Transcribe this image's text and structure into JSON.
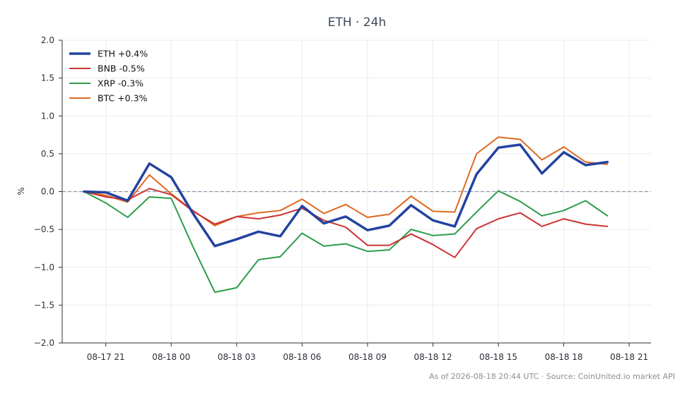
{
  "chart_data": {
    "type": "line",
    "title": "ETH · 24h",
    "xlabel": "",
    "ylabel": "%",
    "ylim": [
      -2.0,
      2.0
    ],
    "yticks": [
      2.0,
      1.5,
      1.0,
      0.5,
      0.0,
      -0.5,
      -1.0,
      -1.5,
      -2.0
    ],
    "ytick_labels": [
      "2.0",
      "1.5",
      "1.0",
      "0.5",
      "0.0",
      "−0.5",
      "−1.0",
      "−1.5",
      "−2.0"
    ],
    "xlim": [
      "2026-08-17 19:00",
      "2026-08-18 22:00"
    ],
    "xticks": [
      "2026-08-17 21:00",
      "2026-08-18 00:00",
      "2026-08-18 03:00",
      "2026-08-18 06:00",
      "2026-08-18 09:00",
      "2026-08-18 12:00",
      "2026-08-18 15:00",
      "2026-08-18 18:00",
      "2026-08-18 21:00"
    ],
    "xtick_labels": [
      "08-17 21",
      "08-18 00",
      "08-18 03",
      "08-18 06",
      "08-18 09",
      "08-18 12",
      "08-18 15",
      "08-18 18",
      "08-18 21"
    ],
    "x": [
      "2026-08-17 20:00",
      "2026-08-17 21:00",
      "2026-08-17 22:00",
      "2026-08-17 23:00",
      "2026-08-18 00:00",
      "2026-08-18 01:00",
      "2026-08-18 02:00",
      "2026-08-18 03:00",
      "2026-08-18 04:00",
      "2026-08-18 05:00",
      "2026-08-18 06:00",
      "2026-08-18 07:00",
      "2026-08-18 08:00",
      "2026-08-18 09:00",
      "2026-08-18 10:00",
      "2026-08-18 11:00",
      "2026-08-18 12:00",
      "2026-08-18 13:00",
      "2026-08-18 14:00",
      "2026-08-18 15:00",
      "2026-08-18 16:00",
      "2026-08-18 17:00",
      "2026-08-18 18:00",
      "2026-08-18 19:00",
      "2026-08-18 20:00"
    ],
    "series": [
      {
        "name": "ETH +0.4%",
        "color": "#2343a0",
        "width": 3.5,
        "values": [
          0.0,
          -0.01,
          -0.12,
          0.37,
          0.19,
          -0.29,
          -0.72,
          -0.63,
          -0.53,
          -0.59,
          -0.19,
          -0.42,
          -0.33,
          -0.51,
          -0.45,
          -0.18,
          -0.38,
          -0.46,
          0.23,
          0.58,
          0.62,
          0.24,
          0.52,
          0.35,
          0.39
        ]
      },
      {
        "name": "BNB -0.5%",
        "color": "#cc3333",
        "width": 2,
        "values": [
          0.0,
          -0.07,
          -0.11,
          0.04,
          -0.04,
          -0.26,
          -0.43,
          -0.33,
          -0.36,
          -0.31,
          -0.22,
          -0.38,
          -0.47,
          -0.71,
          -0.71,
          -0.56,
          -0.7,
          -0.87,
          -0.49,
          -0.36,
          -0.28,
          -0.46,
          -0.36,
          -0.43,
          -0.46
        ]
      },
      {
        "name": "XRP -0.3%",
        "color": "#2c9d4a",
        "width": 2,
        "values": [
          0.0,
          -0.15,
          -0.34,
          -0.07,
          -0.09,
          -0.73,
          -1.33,
          -1.27,
          -0.9,
          -0.86,
          -0.55,
          -0.72,
          -0.69,
          -0.79,
          -0.77,
          -0.5,
          -0.58,
          -0.56,
          -0.27,
          0.01,
          -0.13,
          -0.32,
          -0.25,
          -0.12,
          -0.32
        ]
      },
      {
        "name": "BTC +0.3%",
        "color": "#dd6a22",
        "width": 2,
        "values": [
          0.0,
          -0.05,
          -0.14,
          0.22,
          -0.03,
          -0.25,
          -0.45,
          -0.33,
          -0.28,
          -0.25,
          -0.1,
          -0.29,
          -0.17,
          -0.34,
          -0.3,
          -0.06,
          -0.26,
          -0.27,
          0.5,
          0.72,
          0.69,
          0.42,
          0.59,
          0.39,
          0.36
        ]
      }
    ],
    "zero_line": true,
    "grid": true,
    "legend_position": "top-left"
  },
  "footer": "As of 2026-08-18 20:44 UTC · Source: CoinUnited.io market API"
}
